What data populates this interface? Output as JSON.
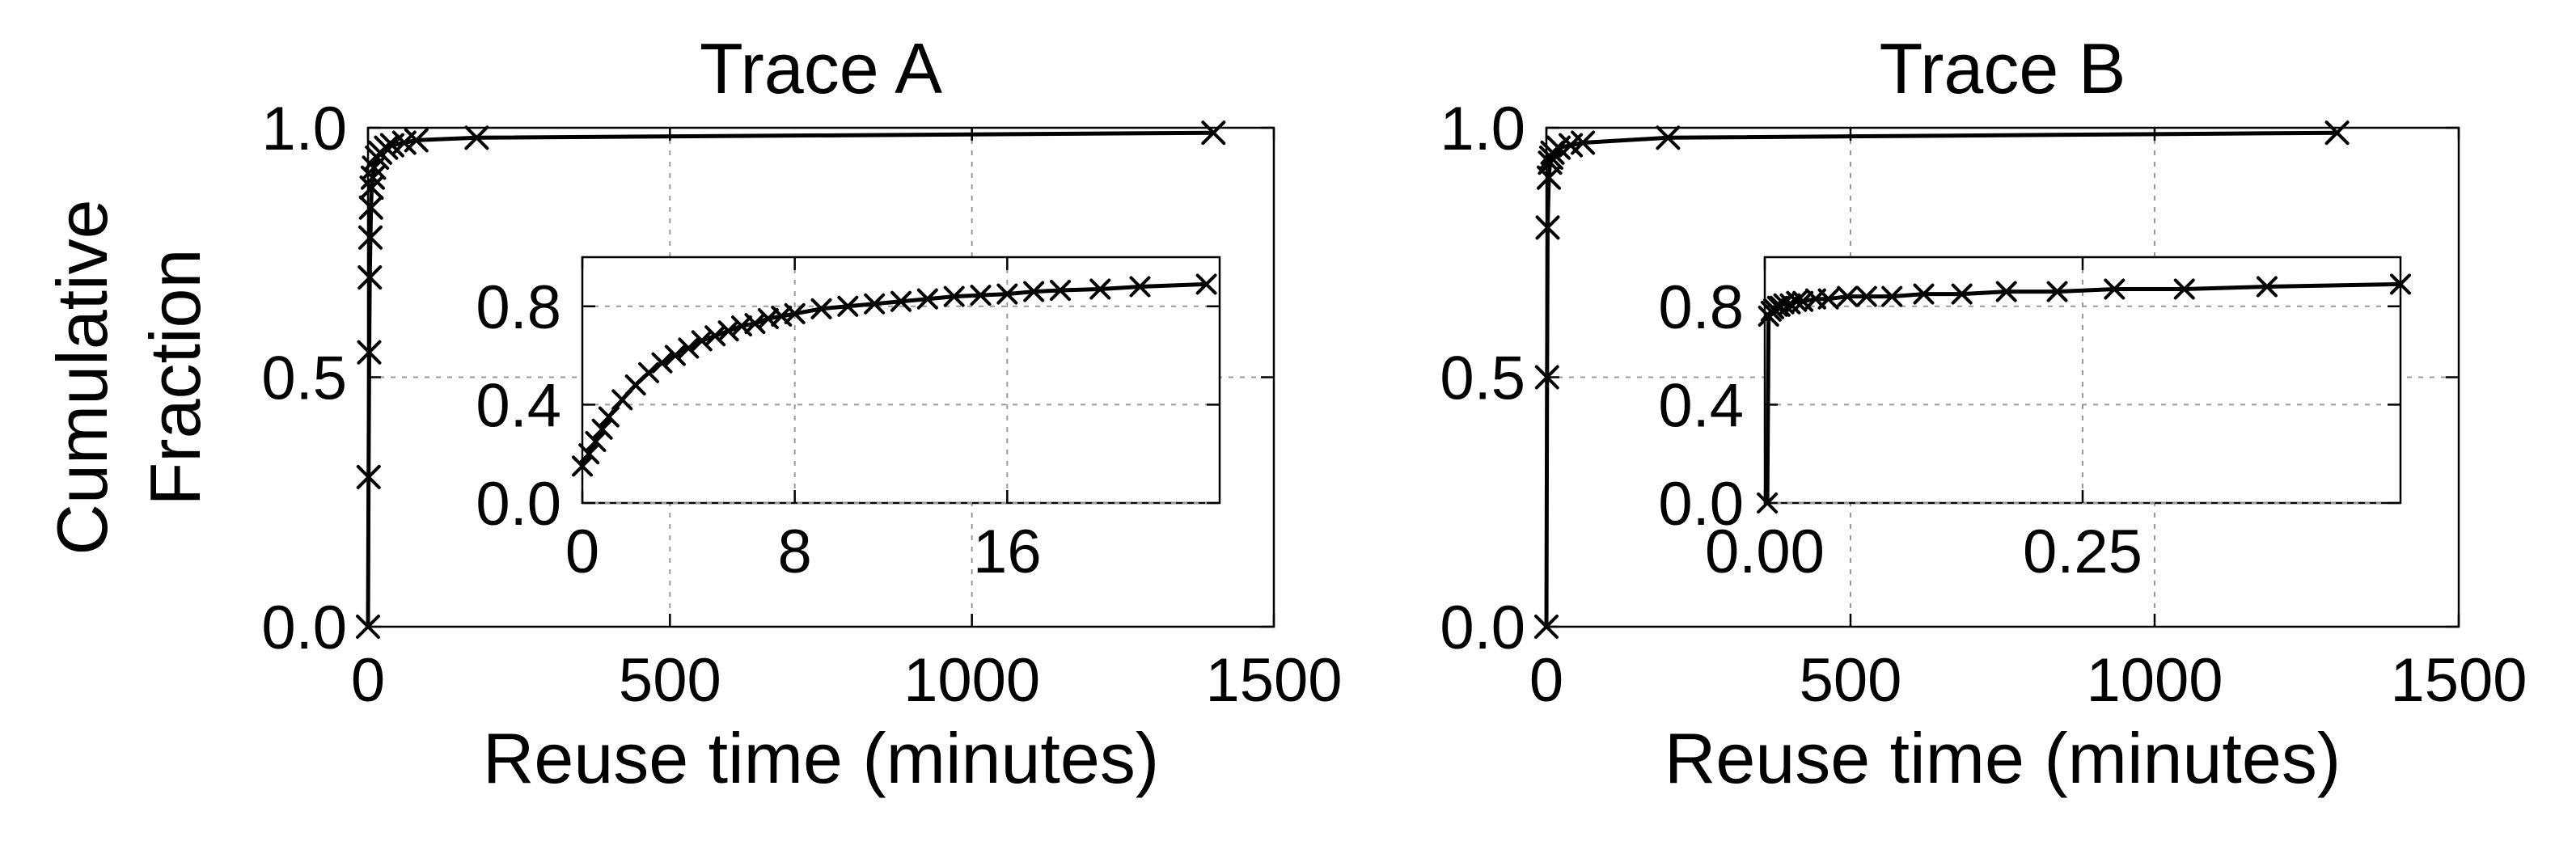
{
  "chart_data": [
    {
      "type": "line",
      "title": "Trace A",
      "xlabel": "Reuse time (minutes)",
      "ylabel": "Cumulative Fraction",
      "xlim": [
        0,
        1500
      ],
      "ylim": [
        0,
        1.0
      ],
      "xticks": [
        0,
        500,
        1000,
        1500
      ],
      "yticks": [
        0.0,
        0.5,
        1.0
      ],
      "xtick_labels": [
        "0",
        "500",
        "1000",
        "1500"
      ],
      "ytick_labels": [
        "0.0",
        "0.5",
        "1.0"
      ],
      "grid": true,
      "marker": "x",
      "x": [
        0,
        1,
        2,
        3,
        4,
        5,
        6,
        8,
        10,
        15,
        20,
        30,
        40,
        60,
        80,
        180,
        1400
      ],
      "y": [
        0.0,
        0.3,
        0.55,
        0.7,
        0.78,
        0.84,
        0.88,
        0.9,
        0.92,
        0.94,
        0.95,
        0.96,
        0.965,
        0.97,
        0.975,
        0.98,
        0.99
      ],
      "inset": {
        "xlim": [
          0,
          24
        ],
        "ylim": [
          0,
          1.0
        ],
        "xticks": [
          0,
          8,
          16
        ],
        "yticks": [
          0.0,
          0.4,
          0.8
        ],
        "xtick_labels": [
          "0",
          "8",
          "16"
        ],
        "ytick_labels": [
          "0.0",
          "0.4",
          "0.8"
        ],
        "x": [
          0,
          0.25,
          0.5,
          0.75,
          1,
          1.5,
          2,
          2.5,
          3,
          3.5,
          4,
          4.5,
          5,
          5.5,
          6,
          6.5,
          7,
          7.5,
          8,
          9,
          10,
          11,
          12,
          13,
          14,
          15,
          16,
          17,
          18,
          19.5,
          21,
          23.5
        ],
        "y": [
          0.15,
          0.2,
          0.25,
          0.3,
          0.35,
          0.42,
          0.48,
          0.53,
          0.57,
          0.6,
          0.63,
          0.66,
          0.68,
          0.7,
          0.72,
          0.73,
          0.75,
          0.76,
          0.77,
          0.79,
          0.8,
          0.81,
          0.82,
          0.83,
          0.84,
          0.845,
          0.85,
          0.86,
          0.865,
          0.87,
          0.88,
          0.89
        ]
      }
    },
    {
      "type": "line",
      "title": "Trace B",
      "xlabel": "Reuse time (minutes)",
      "ylabel": "",
      "xlim": [
        0,
        1500
      ],
      "ylim": [
        0,
        1.0
      ],
      "xticks": [
        0,
        500,
        1000,
        1500
      ],
      "yticks": [
        0.0,
        0.5,
        1.0
      ],
      "xtick_labels": [
        "0",
        "500",
        "1000",
        "1500"
      ],
      "ytick_labels": [
        "0.0",
        "0.5",
        "1.0"
      ],
      "grid": true,
      "marker": "x",
      "x": [
        0,
        1,
        2,
        4,
        6,
        8,
        10,
        20,
        40,
        60,
        200,
        1300
      ],
      "y": [
        0.0,
        0.5,
        0.8,
        0.9,
        0.93,
        0.94,
        0.95,
        0.96,
        0.965,
        0.97,
        0.98,
        0.99
      ],
      "inset": {
        "xlim": [
          0,
          0.5
        ],
        "ylim": [
          0,
          1.0
        ],
        "xticks": [
          0.0,
          0.25
        ],
        "yticks": [
          0.0,
          0.4,
          0.8
        ],
        "xtick_labels": [
          "0.00",
          "0.25"
        ],
        "ytick_labels": [
          "0.0",
          "0.4",
          "0.8"
        ],
        "x": [
          0.002,
          0.003,
          0.005,
          0.007,
          0.01,
          0.012,
          0.015,
          0.02,
          0.025,
          0.03,
          0.04,
          0.05,
          0.065,
          0.08,
          0.1,
          0.125,
          0.155,
          0.19,
          0.23,
          0.275,
          0.33,
          0.395,
          0.5
        ],
        "y": [
          0.0,
          0.76,
          0.78,
          0.79,
          0.8,
          0.8,
          0.81,
          0.81,
          0.82,
          0.82,
          0.83,
          0.83,
          0.84,
          0.84,
          0.84,
          0.85,
          0.85,
          0.86,
          0.86,
          0.87,
          0.87,
          0.88,
          0.89
        ]
      }
    }
  ]
}
